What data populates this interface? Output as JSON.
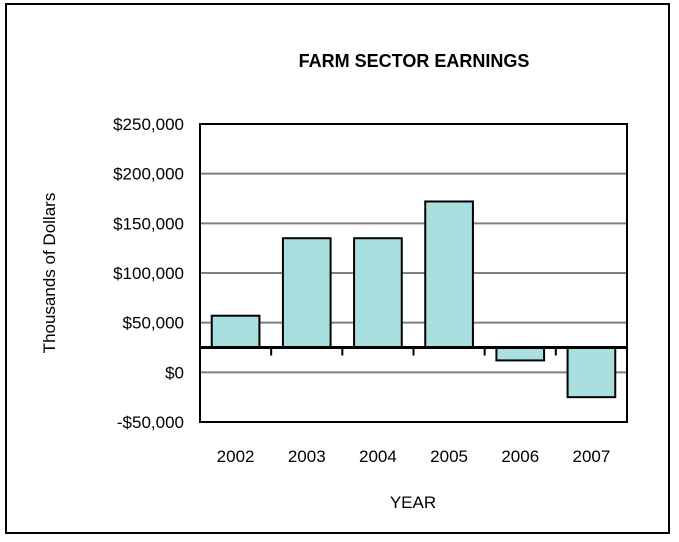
{
  "chart_data": {
    "type": "bar",
    "title": "FARM SECTOR EARNINGS",
    "xlabel": "YEAR",
    "ylabel": "Thousands of Dollars",
    "categories": [
      "2002",
      "2003",
      "2004",
      "2005",
      "2006",
      "2007"
    ],
    "values": [
      57000,
      135000,
      135000,
      172000,
      12000,
      -25000
    ],
    "ylim": [
      -50000,
      250000
    ],
    "yticks": [
      -50000,
      0,
      50000,
      100000,
      150000,
      200000,
      250000
    ],
    "ytick_labels": [
      "-$50,000",
      "$0",
      "$50,000",
      "$100,000",
      "$150,000",
      "$200,000",
      "$250,000"
    ],
    "x_axis_crosses_at": 25000,
    "grid": true,
    "legend": "none",
    "colors": {
      "bar_fill": "#a9dfdf",
      "bar_stroke": "#000000",
      "gridline": "#808080",
      "axis": "#000000"
    }
  }
}
